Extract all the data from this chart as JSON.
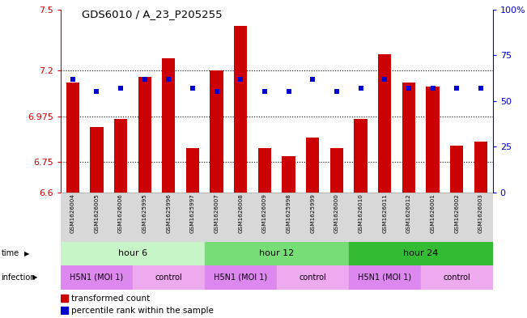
{
  "title": "GDS6010 / A_23_P205255",
  "samples": [
    "GSM1626004",
    "GSM1626005",
    "GSM1626006",
    "GSM1625995",
    "GSM1625996",
    "GSM1625997",
    "GSM1626007",
    "GSM1626008",
    "GSM1626009",
    "GSM1625998",
    "GSM1625999",
    "GSM1626000",
    "GSM1626010",
    "GSM1626011",
    "GSM1626012",
    "GSM1626001",
    "GSM1626002",
    "GSM1626003"
  ],
  "transformed_count": [
    7.14,
    6.92,
    6.96,
    7.17,
    7.26,
    6.82,
    7.2,
    7.42,
    6.82,
    6.78,
    6.87,
    6.82,
    6.96,
    7.28,
    7.14,
    7.12,
    6.83,
    6.85
  ],
  "percentile_rank": [
    62,
    55,
    57,
    62,
    62,
    57,
    55,
    62,
    55,
    55,
    62,
    55,
    57,
    62,
    57,
    57,
    57,
    57
  ],
  "ylim": [
    6.6,
    7.5
  ],
  "yticks": [
    6.6,
    6.75,
    6.975,
    7.2,
    7.5
  ],
  "ytick_labels": [
    "6.6",
    "6.75",
    "6.975",
    "7.2",
    "7.5"
  ],
  "right_yticks": [
    0,
    25,
    50,
    75,
    100
  ],
  "right_ytick_labels": [
    "0",
    "25",
    "50",
    "75",
    "100%"
  ],
  "dotted_lines": [
    7.2,
    6.975,
    6.75
  ],
  "bar_color": "#cc0000",
  "blue_color": "#0000cc",
  "bar_width": 0.55,
  "time_colors": [
    "#c8f5c8",
    "#77dd77",
    "#33bb33"
  ],
  "time_groups": [
    {
      "label": "hour 6",
      "start": 0,
      "end": 6
    },
    {
      "label": "hour 12",
      "start": 6,
      "end": 12
    },
    {
      "label": "hour 24",
      "start": 12,
      "end": 18
    }
  ],
  "infection_groups": [
    {
      "label": "H5N1 (MOI 1)",
      "start": 0,
      "end": 3
    },
    {
      "label": "control",
      "start": 3,
      "end": 6
    },
    {
      "label": "H5N1 (MOI 1)",
      "start": 6,
      "end": 9
    },
    {
      "label": "control",
      "start": 9,
      "end": 12
    },
    {
      "label": "H5N1 (MOI 1)",
      "start": 12,
      "end": 15
    },
    {
      "label": "control",
      "start": 15,
      "end": 18
    }
  ],
  "inf_colors": [
    "#dd88ee",
    "#eeaaee",
    "#dd88ee",
    "#eeaaee",
    "#dd88ee",
    "#eeaaee"
  ],
  "legend_items": [
    {
      "color": "#cc0000",
      "label": "transformed count"
    },
    {
      "color": "#0000cc",
      "label": "percentile rank within the sample"
    }
  ],
  "left_axis_color": "#cc0000",
  "right_axis_color": "#0000cc"
}
